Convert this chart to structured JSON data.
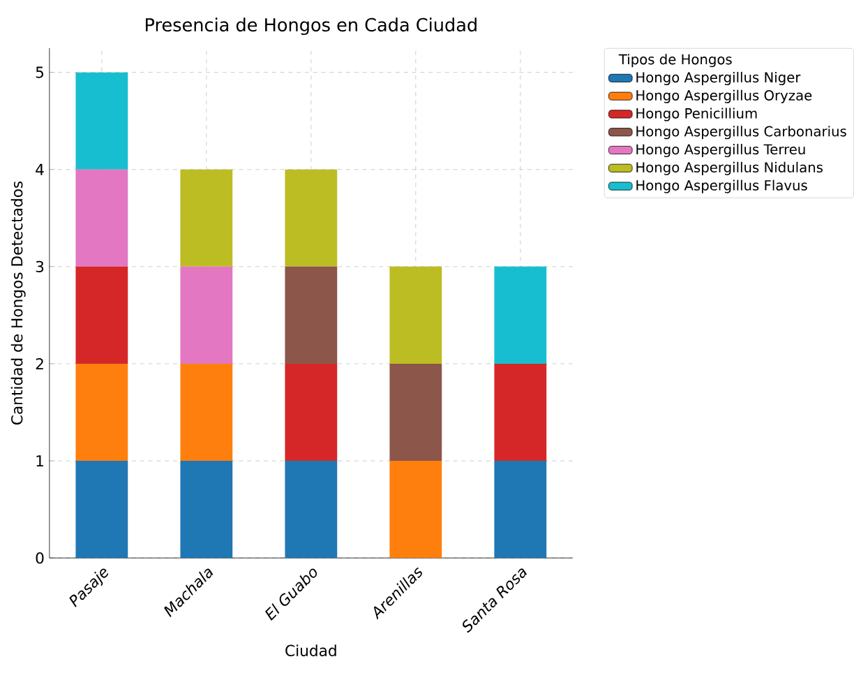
{
  "chart_data": {
    "type": "bar",
    "stacked": true,
    "title": "Presencia de Hongos en Cada Ciudad",
    "xlabel": "Ciudad",
    "ylabel": "Cantidad de Hongos Detectados",
    "legend_title": "Tipos de Hongos",
    "categories": [
      "Pasaje",
      "Machala",
      "El Guabo",
      "Arenillas",
      "Santa Rosa"
    ],
    "series": [
      {
        "name": "Hongo Aspergillus Niger",
        "color": "#1f77b4",
        "values": [
          1,
          1,
          1,
          0,
          1
        ]
      },
      {
        "name": "Hongo Aspergillus Oryzae",
        "color": "#ff7f0e",
        "values": [
          1,
          1,
          0,
          1,
          0
        ]
      },
      {
        "name": "Hongo Penicillium",
        "color": "#d62728",
        "values": [
          1,
          0,
          1,
          0,
          1
        ]
      },
      {
        "name": "Hongo Aspergillus Carbonarius",
        "color": "#8c564b",
        "values": [
          0,
          0,
          1,
          1,
          0
        ]
      },
      {
        "name": "Hongo Aspergillus Terreu",
        "color": "#e377c2",
        "values": [
          1,
          1,
          0,
          0,
          0
        ]
      },
      {
        "name": "Hongo Aspergillus Nidulans",
        "color": "#bcbd22",
        "values": [
          0,
          1,
          1,
          1,
          0
        ]
      },
      {
        "name": "Hongo Aspergillus Flavus",
        "color": "#17becf",
        "values": [
          1,
          0,
          0,
          0,
          1
        ]
      }
    ],
    "ylim": [
      0,
      5.25
    ],
    "yticks": [
      0,
      1,
      2,
      3,
      4,
      5
    ],
    "grid": true,
    "legend": "top right"
  }
}
